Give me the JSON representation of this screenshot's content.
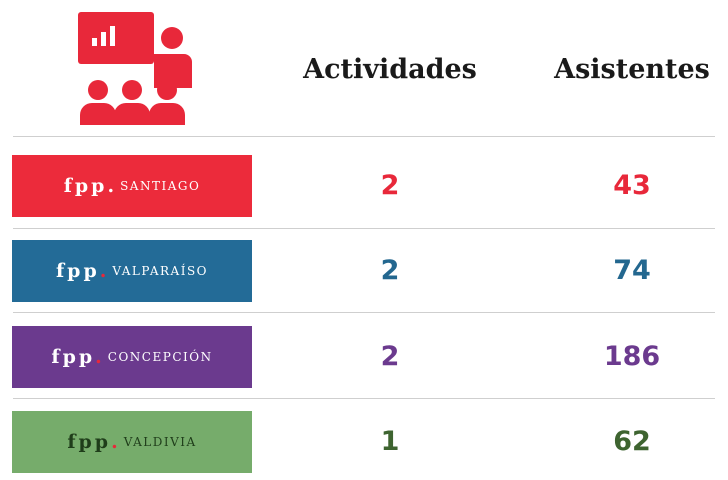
{
  "header": {
    "activities": "Actividades",
    "attendees": "Asistentes"
  },
  "rows": [
    {
      "brand": "fpp",
      "dot": ".",
      "city": "SANTIAGO",
      "activities": 2,
      "attendees": 43
    },
    {
      "brand": "fpp",
      "dot": ".",
      "city": "VALPARAÍSO",
      "activities": 2,
      "attendees": 74
    },
    {
      "brand": "fpp",
      "dot": ".",
      "city": "CONCEPCIÓN",
      "activities": 2,
      "attendees": 186
    },
    {
      "brand": "fpp",
      "dot": ".",
      "city": "VALDIVIA",
      "activities": 1,
      "attendees": 62
    }
  ]
}
